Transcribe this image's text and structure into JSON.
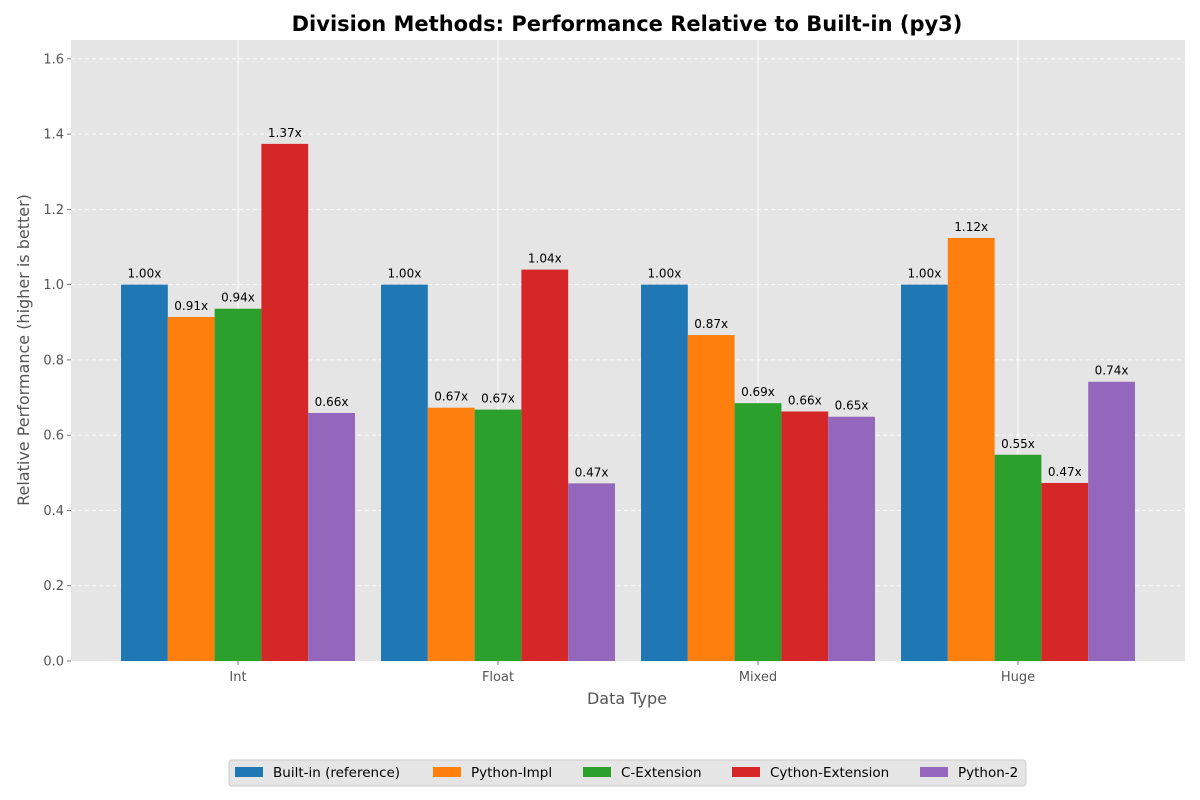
{
  "chart_data": {
    "type": "bar",
    "title": "Division Methods: Performance Relative to Built-in (py3)",
    "xlabel": "Data Type",
    "ylabel": "Relative Performance (higher is better)",
    "ylim": [
      0,
      1.65
    ],
    "yticks": [
      "0.0",
      "0.2",
      "0.4",
      "0.6",
      "0.8",
      "1.0",
      "1.2",
      "1.4",
      "1.6"
    ],
    "categories": [
      "Int",
      "Float",
      "Mixed",
      "Huge"
    ],
    "series": [
      {
        "name": "Built-in (reference)",
        "color": "#1f77b4",
        "values": [
          1.0,
          1.0,
          1.0,
          1.0
        ],
        "labels": [
          "1.00x",
          "1.00x",
          "1.00x",
          "1.00x"
        ]
      },
      {
        "name": "Python-Impl",
        "color": "#ff7f0e",
        "values": [
          0.914,
          0.673,
          0.866,
          1.124
        ],
        "labels": [
          "0.91x",
          "0.67x",
          "0.87x",
          "1.12x"
        ]
      },
      {
        "name": "C-Extension",
        "color": "#2ca02c",
        "values": [
          0.936,
          0.668,
          0.685,
          0.548
        ],
        "labels": [
          "0.94x",
          "0.67x",
          "0.69x",
          "0.55x"
        ]
      },
      {
        "name": "Cython-Extension",
        "color": "#d62728",
        "values": [
          1.374,
          1.04,
          0.663,
          0.473
        ],
        "labels": [
          "1.37x",
          "1.04x",
          "0.66x",
          "0.47x"
        ]
      },
      {
        "name": "Python-2",
        "color": "#9467bd",
        "values": [
          0.659,
          0.472,
          0.649,
          0.742
        ],
        "labels": [
          "0.66x",
          "0.47x",
          "0.65x",
          "0.74x"
        ]
      }
    ],
    "grid": true,
    "legend_position": "bottom-center"
  }
}
